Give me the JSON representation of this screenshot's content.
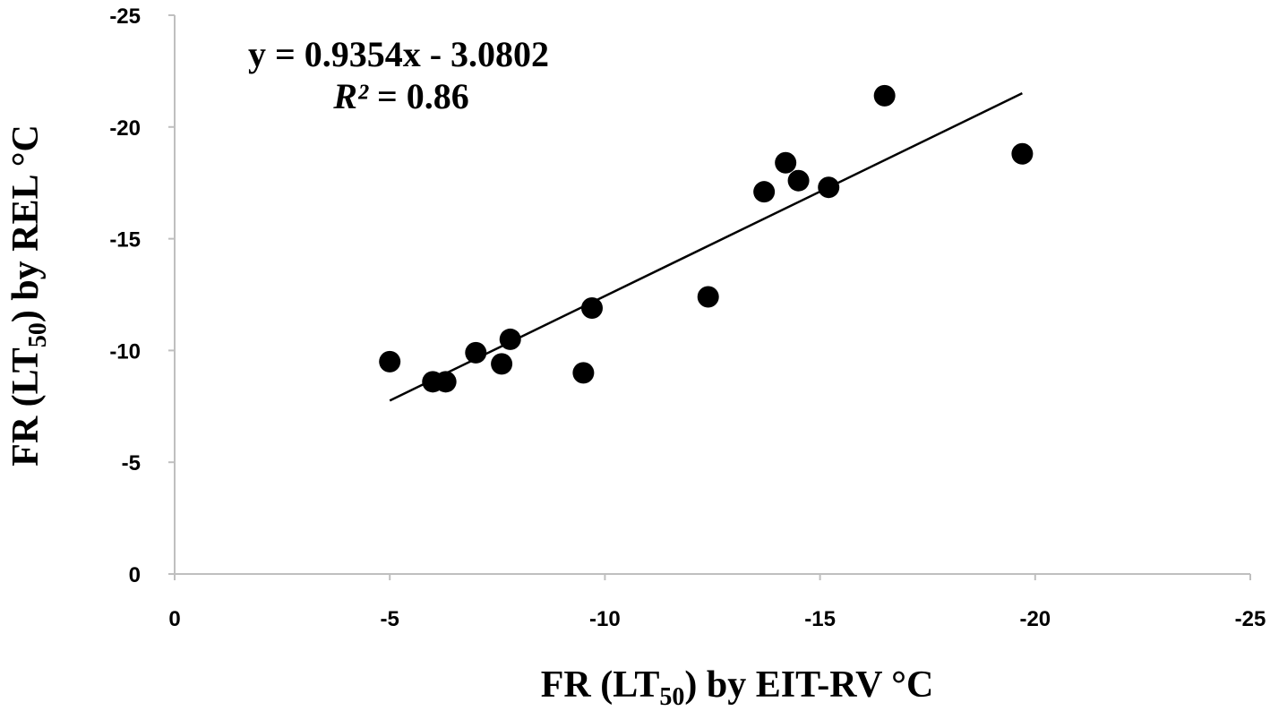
{
  "chart_data": {
    "type": "scatter",
    "x": [
      -5.0,
      -6.0,
      -6.3,
      -7.0,
      -7.6,
      -7.8,
      -9.5,
      -9.7,
      -12.4,
      -13.7,
      -14.2,
      -14.5,
      -15.2,
      -16.5,
      -19.7
    ],
    "y": [
      -9.5,
      -8.6,
      -8.6,
      -9.9,
      -9.4,
      -10.5,
      -9.0,
      -11.9,
      -12.4,
      -17.1,
      -18.4,
      -17.6,
      -17.3,
      -21.4,
      -18.8
    ],
    "trendline": {
      "slope": 0.9354,
      "intercept": -3.0802,
      "x_range": [
        -5,
        -19.7
      ]
    },
    "equation_text": "y = 0.9354x - 3.0802",
    "r2_symbol": "R²",
    "r2_text": " = 0.86",
    "xlabel": {
      "pre": "FR (LT",
      "sub": "50",
      "post": ") by EIT-RV °C"
    },
    "ylabel": {
      "pre": "FR (LT",
      "sub": "50",
      "post": ") by REL °C"
    },
    "xlim": [
      0,
      -25
    ],
    "ylim": [
      0,
      -25
    ],
    "xticks": [
      0,
      -5,
      -10,
      -15,
      -20,
      -25
    ],
    "yticks": [
      0,
      -5,
      -10,
      -15,
      -20,
      -25
    ],
    "x_tick_labels": [
      "0",
      "-5",
      "-10",
      "-15",
      "-20",
      "-25"
    ],
    "y_tick_labels": [
      "0",
      "-5",
      "-10",
      "-15",
      "-20",
      "-25"
    ],
    "grid": false,
    "legend": false,
    "colors": {
      "marker": "#000000",
      "line": "#000000",
      "axis": "#bfbfbf"
    }
  }
}
